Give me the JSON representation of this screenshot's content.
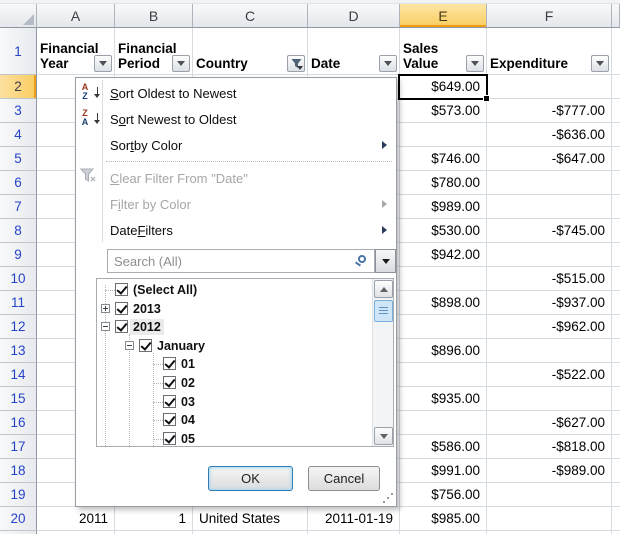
{
  "sheet": {
    "col_letters": [
      "A",
      "B",
      "C",
      "D",
      "E",
      "F"
    ],
    "active_column": "E",
    "active_cell": "E2",
    "header_row_number": "1",
    "headers": [
      {
        "col": "A",
        "label": "Financial Year",
        "filter": "dropdown"
      },
      {
        "col": "B",
        "label": "Financial Period",
        "filter": "dropdown"
      },
      {
        "col": "C",
        "label": "Country",
        "filter": "filtered"
      },
      {
        "col": "D",
        "label": "Date",
        "filter": "dropdown"
      },
      {
        "col": "E",
        "label": "Sales Value",
        "filter": "dropdown"
      },
      {
        "col": "F",
        "label": "Expenditure",
        "filter": "dropdown"
      }
    ],
    "rows": [
      {
        "n": "2",
        "a": "",
        "b": "",
        "c": "",
        "d": "",
        "e": "$649.00",
        "f": ""
      },
      {
        "n": "3",
        "a": "",
        "b": "",
        "c": "",
        "d": "",
        "e": "$573.00",
        "f": "-$777.00"
      },
      {
        "n": "4",
        "a": "",
        "b": "",
        "c": "",
        "d": "",
        "e": "",
        "f": "-$636.00"
      },
      {
        "n": "5",
        "a": "",
        "b": "",
        "c": "",
        "d": "",
        "e": "$746.00",
        "f": "-$647.00"
      },
      {
        "n": "6",
        "a": "",
        "b": "",
        "c": "",
        "d": "",
        "e": "$780.00",
        "f": ""
      },
      {
        "n": "7",
        "a": "",
        "b": "",
        "c": "",
        "d": "",
        "e": "$989.00",
        "f": ""
      },
      {
        "n": "8",
        "a": "",
        "b": "",
        "c": "",
        "d": "",
        "e": "$530.00",
        "f": "-$745.00"
      },
      {
        "n": "9",
        "a": "",
        "b": "",
        "c": "",
        "d": "",
        "e": "$942.00",
        "f": ""
      },
      {
        "n": "10",
        "a": "",
        "b": "",
        "c": "",
        "d": "",
        "e": "",
        "f": "-$515.00"
      },
      {
        "n": "11",
        "a": "",
        "b": "",
        "c": "",
        "d": "",
        "e": "$898.00",
        "f": "-$937.00"
      },
      {
        "n": "12",
        "a": "",
        "b": "",
        "c": "",
        "d": "",
        "e": "",
        "f": "-$962.00"
      },
      {
        "n": "13",
        "a": "",
        "b": "",
        "c": "",
        "d": "",
        "e": "$896.00",
        "f": ""
      },
      {
        "n": "14",
        "a": "",
        "b": "",
        "c": "",
        "d": "",
        "e": "",
        "f": "-$522.00"
      },
      {
        "n": "15",
        "a": "",
        "b": "",
        "c": "",
        "d": "",
        "e": "$935.00",
        "f": ""
      },
      {
        "n": "16",
        "a": "",
        "b": "",
        "c": "",
        "d": "",
        "e": "",
        "f": "-$627.00"
      },
      {
        "n": "17",
        "a": "",
        "b": "",
        "c": "",
        "d": "",
        "e": "$586.00",
        "f": "-$818.00"
      },
      {
        "n": "18",
        "a": "",
        "b": "",
        "c": "",
        "d": "",
        "e": "$991.00",
        "f": "-$989.00"
      },
      {
        "n": "19",
        "a": "",
        "b": "",
        "c": "",
        "d": "",
        "e": "$756.00",
        "f": ""
      },
      {
        "n": "20",
        "a": "2011",
        "b": "1",
        "c": "United States",
        "d": "2011-01-19",
        "e": "$985.00",
        "f": ""
      }
    ]
  },
  "filter_menu": {
    "items": [
      {
        "type": "item",
        "icon": "sort-az-icon",
        "pre": "",
        "accel": "S",
        "post": "ort Oldest to Newest",
        "enabled": true,
        "submenu": false
      },
      {
        "type": "item",
        "icon": "sort-za-icon",
        "pre": "S",
        "accel": "o",
        "post": "rt Newest to Oldest",
        "enabled": true,
        "submenu": false
      },
      {
        "type": "item",
        "icon": "",
        "pre": "Sor",
        "accel": "t",
        "post": " by Color",
        "enabled": true,
        "submenu": true
      },
      {
        "type": "separator"
      },
      {
        "type": "item",
        "icon": "clear-filter-icon",
        "pre": "",
        "accel": "C",
        "post": "lear Filter From \"Date\"",
        "enabled": false,
        "submenu": false
      },
      {
        "type": "item",
        "icon": "",
        "pre": "F",
        "accel": "i",
        "post": "lter by Color",
        "enabled": false,
        "submenu": true
      },
      {
        "type": "item",
        "icon": "",
        "pre": "Date ",
        "accel": "F",
        "post": "ilters",
        "enabled": true,
        "submenu": true
      }
    ],
    "search_placeholder": "Search (All)",
    "tree": [
      {
        "level": 0,
        "expander": "",
        "checked": true,
        "label": "(Select All)",
        "highlight": false
      },
      {
        "level": 0,
        "expander": "plus",
        "checked": true,
        "label": "2013",
        "highlight": false
      },
      {
        "level": 0,
        "expander": "minus",
        "checked": true,
        "label": "2012",
        "highlight": true
      },
      {
        "level": 1,
        "expander": "minus",
        "checked": true,
        "label": "January",
        "highlight": false
      },
      {
        "level": 2,
        "expander": "",
        "checked": true,
        "label": "01",
        "highlight": false
      },
      {
        "level": 2,
        "expander": "",
        "checked": true,
        "label": "02",
        "highlight": false
      },
      {
        "level": 2,
        "expander": "",
        "checked": true,
        "label": "03",
        "highlight": false
      },
      {
        "level": 2,
        "expander": "",
        "checked": true,
        "label": "04",
        "highlight": false
      },
      {
        "level": 2,
        "expander": "",
        "checked": true,
        "label": "05",
        "highlight": false
      },
      {
        "level": 2,
        "expander": "",
        "checked": true,
        "label": "",
        "highlight": false
      }
    ],
    "ok_label": "OK",
    "cancel_label": "Cancel"
  },
  "colors": {
    "active_header_highlight": "#f9cd60",
    "selection_border": "#000000",
    "row_number_blue": "#2644c8",
    "scroll_thumb_blue": "#cfe6f9",
    "gridline": "#d6dbe2"
  }
}
